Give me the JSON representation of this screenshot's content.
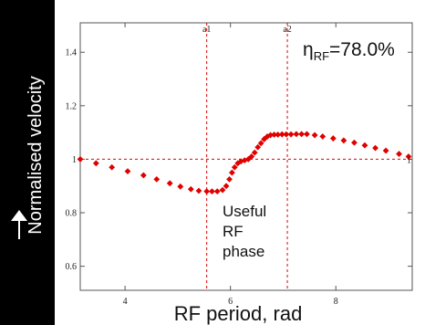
{
  "chart_data": {
    "type": "scatter",
    "xlabel": "RF period, rad",
    "ylabel": "Normalised velocity",
    "xlim": [
      3.15,
      9.45
    ],
    "ylim": [
      0.51,
      1.51
    ],
    "x_ticks": [
      4,
      6,
      8
    ],
    "y_ticks": [
      0.6,
      0.8,
      1,
      1.2,
      1.4
    ],
    "grid": false,
    "series": [
      {
        "color": "#e00000",
        "points": [
          [
            3.15,
            1.0
          ],
          [
            3.45,
            0.985
          ],
          [
            3.75,
            0.97
          ],
          [
            4.05,
            0.955
          ],
          [
            4.35,
            0.94
          ],
          [
            4.6,
            0.925
          ],
          [
            4.85,
            0.91
          ],
          [
            5.05,
            0.898
          ],
          [
            5.25,
            0.888
          ],
          [
            5.4,
            0.882
          ],
          [
            5.55,
            0.88
          ],
          [
            5.65,
            0.88
          ],
          [
            5.75,
            0.88
          ],
          [
            5.85,
            0.885
          ],
          [
            5.92,
            0.9
          ],
          [
            5.98,
            0.925
          ],
          [
            6.03,
            0.95
          ],
          [
            6.08,
            0.97
          ],
          [
            6.14,
            0.985
          ],
          [
            6.2,
            0.992
          ],
          [
            6.27,
            0.996
          ],
          [
            6.34,
            1.0
          ],
          [
            6.4,
            1.01
          ],
          [
            6.46,
            1.025
          ],
          [
            6.52,
            1.045
          ],
          [
            6.58,
            1.06
          ],
          [
            6.64,
            1.075
          ],
          [
            6.7,
            1.085
          ],
          [
            6.76,
            1.09
          ],
          [
            6.83,
            1.092
          ],
          [
            6.9,
            1.092
          ],
          [
            6.98,
            1.093
          ],
          [
            7.06,
            1.093
          ],
          [
            7.15,
            1.093
          ],
          [
            7.25,
            1.094
          ],
          [
            7.35,
            1.094
          ],
          [
            7.45,
            1.094
          ],
          [
            7.6,
            1.09
          ],
          [
            7.75,
            1.085
          ],
          [
            7.95,
            1.078
          ],
          [
            8.15,
            1.07
          ],
          [
            8.35,
            1.062
          ],
          [
            8.55,
            1.052
          ],
          [
            8.75,
            1.042
          ],
          [
            8.95,
            1.032
          ],
          [
            9.2,
            1.02
          ],
          [
            9.38,
            1.01
          ]
        ]
      }
    ],
    "reference_lines": {
      "vertical": [
        {
          "x": 5.55,
          "label": "a1"
        },
        {
          "x": 7.08,
          "label": "a2"
        }
      ],
      "horizontal": [
        {
          "y": 1.0,
          "label": "1"
        }
      ],
      "color": "#e00000",
      "style": "dashed"
    },
    "annotations": {
      "efficiency_symbol": "η",
      "efficiency_sub": "RF",
      "efficiency_value": "=78.0%",
      "useful_phase_lines": [
        "Useful",
        "RF",
        "phase"
      ]
    }
  }
}
